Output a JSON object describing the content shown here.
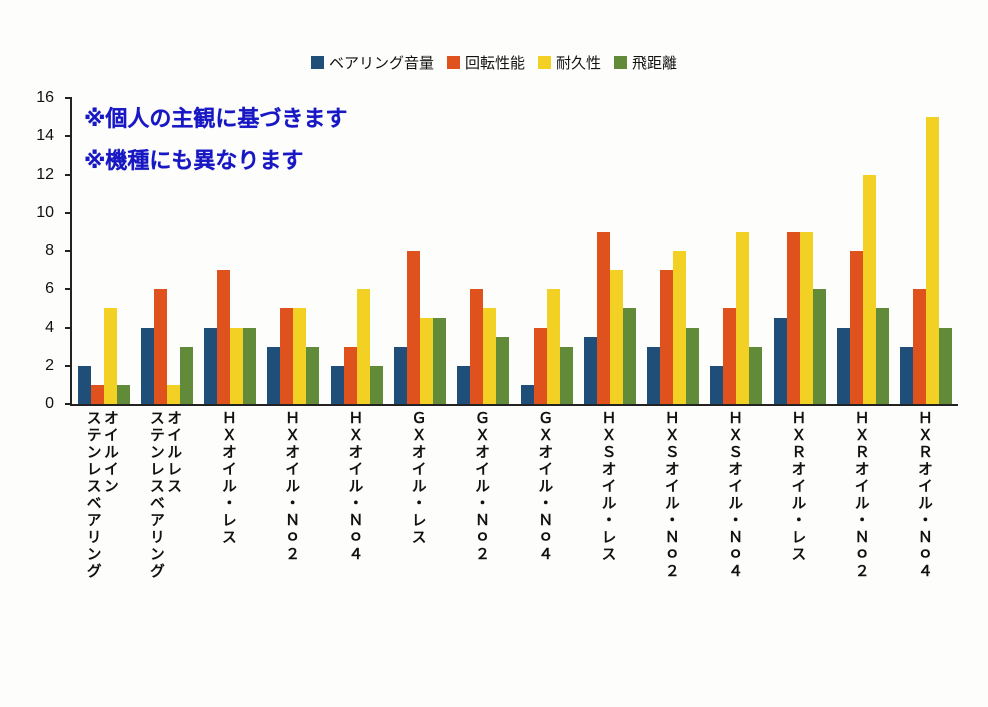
{
  "chart_data": {
    "type": "bar",
    "title": "",
    "xlabel": "",
    "ylabel": "",
    "ylim": [
      0,
      16
    ],
    "ytick_step": 2,
    "grid": false,
    "legend_position": "top",
    "annotation_color": "#1717c4",
    "annotations": [
      "※個人の主観に基づきます",
      "※機種にも異なります"
    ],
    "categories": [
      "オイルイン\nステンレスベアリング",
      "オイルレス\nステンレスベアリング",
      "ＨＸオイル・レス",
      "ＨＸオイル・Ｎｏ２",
      "ＨＸオイル・Ｎｏ４",
      "ＧＸオイル・レス",
      "ＧＸオイル・Ｎｏ２",
      "ＧＸオイル・Ｎｏ４",
      "ＨＸＳオイル・レス",
      "ＨＸＳオイル・Ｎｏ２",
      "ＨＸＳオイル・Ｎｏ４",
      "ＨＸＲオイル・レス",
      "ＨＸＲオイル・Ｎｏ２",
      "ＨＸＲオイル・Ｎｏ４"
    ],
    "series": [
      {
        "name": "ベアリング音量",
        "color": "#1f4e79",
        "values": [
          2,
          4,
          4,
          3,
          2,
          3,
          2,
          1,
          3.5,
          3,
          2,
          4.5,
          4,
          3
        ]
      },
      {
        "name": "回転性能",
        "color": "#e0521d",
        "values": [
          1,
          6,
          7,
          5,
          3,
          8,
          6,
          4,
          9,
          7,
          5,
          9,
          8,
          6
        ]
      },
      {
        "name": "耐久性",
        "color": "#f2d024",
        "values": [
          5,
          1,
          4,
          5,
          6,
          4.5,
          5,
          6,
          7,
          8,
          9,
          9,
          12,
          15
        ]
      },
      {
        "name": "飛距離",
        "color": "#618b38",
        "values": [
          1,
          3,
          4,
          3,
          2,
          4.5,
          3.5,
          3,
          5,
          4,
          3,
          6,
          5,
          4
        ]
      }
    ]
  }
}
